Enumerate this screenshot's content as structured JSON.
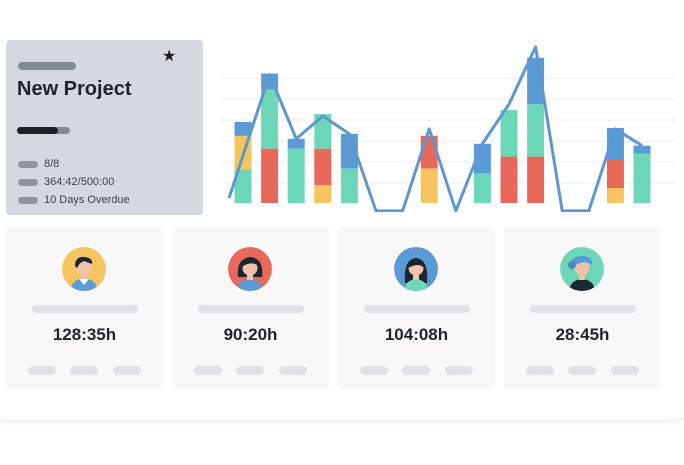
{
  "project": {
    "title": "New Project",
    "progress_fraction": 0.78,
    "stats": [
      {
        "icon": "tasks-icon",
        "text": "8/8"
      },
      {
        "icon": "clock-icon",
        "text": "364:42/500:00"
      },
      {
        "icon": "calendar-icon",
        "text": "10 Days Overdue"
      }
    ],
    "favorite_icon": "star-icon"
  },
  "chart_data": {
    "type": "bar",
    "stacked": true,
    "colors": {
      "blue": "#5b9bd5",
      "teal": "#6bd6b8",
      "red": "#e8685a",
      "yellow": "#f7c55f",
      "line": "#6096ce"
    },
    "bars": [
      [
        {
          "c": "teal",
          "v": 34
        },
        {
          "c": "yellow",
          "v": 34
        },
        {
          "c": "blue",
          "v": 14
        }
      ],
      [
        {
          "c": "red",
          "v": 55
        },
        {
          "c": "teal",
          "v": 60
        },
        {
          "c": "blue",
          "v": 16
        }
      ],
      [
        {
          "c": "teal",
          "v": 55
        },
        {
          "c": "blue",
          "v": 10
        }
      ],
      [
        {
          "c": "yellow",
          "v": 18
        },
        {
          "c": "red",
          "v": 37
        },
        {
          "c": "teal",
          "v": 35
        }
      ],
      [
        {
          "c": "teal",
          "v": 35
        },
        {
          "c": "blue",
          "v": 35
        }
      ],
      [],
      [],
      [
        {
          "c": "yellow",
          "v": 35
        },
        {
          "c": "red",
          "v": 33
        }
      ],
      [],
      [
        {
          "c": "teal",
          "v": 30
        },
        {
          "c": "blue",
          "v": 30
        }
      ],
      [
        {
          "c": "red",
          "v": 47
        },
        {
          "c": "teal",
          "v": 47
        }
      ],
      [
        {
          "c": "red",
          "v": 47
        },
        {
          "c": "teal",
          "v": 53
        },
        {
          "c": "blue",
          "v": 47
        }
      ],
      [],
      [],
      [
        {
          "c": "yellow",
          "v": 15
        },
        {
          "c": "red",
          "v": 29
        },
        {
          "c": "blue",
          "v": 32
        }
      ],
      [
        {
          "c": "teal",
          "v": 50
        },
        {
          "c": "blue",
          "v": 8
        }
      ]
    ],
    "line": [
      5,
      130,
      65,
      88,
      70,
      -8,
      -8,
      75,
      -8,
      60,
      100,
      158,
      -8,
      -8,
      75,
      58
    ],
    "ylim": [
      -10,
      165
    ],
    "grid": true
  },
  "people": [
    {
      "hours": "128:35h"
    },
    {
      "hours": "90:20h"
    },
    {
      "hours": "104:08h"
    },
    {
      "hours": "28:45h"
    }
  ]
}
